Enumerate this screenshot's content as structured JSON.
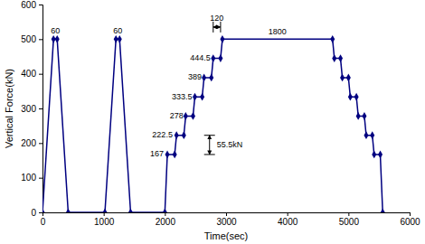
{
  "chart_data": {
    "type": "line",
    "x_label": "Time(sec)",
    "y_label": "Vertical Force(kN)",
    "x": [
      0,
      180,
      240,
      420,
      1020,
      1200,
      1260,
      1440,
      2000,
      2040,
      2160,
      2190,
      2310,
      2340,
      2460,
      2490,
      2610,
      2640,
      2760,
      2790,
      2910,
      2940,
      4740,
      4770,
      4870,
      4900,
      5000,
      5030,
      5130,
      5160,
      5260,
      5290,
      5390,
      5420,
      5520,
      5560
    ],
    "values": [
      0,
      500,
      500,
      0,
      0,
      500,
      500,
      0,
      0,
      167,
      167,
      222.5,
      222.5,
      278,
      278,
      333.5,
      333.5,
      389,
      389,
      444.5,
      444.5,
      500,
      500,
      444.5,
      444.5,
      389,
      389,
      333.5,
      333.5,
      278,
      278,
      222.5,
      222.5,
      167,
      167,
      0
    ],
    "color": "#000080",
    "marker": "diamond",
    "xlim": [
      0,
      6000
    ],
    "xticks": [
      0,
      1000,
      2000,
      3000,
      4000,
      5000,
      6000
    ],
    "ylim": [
      0,
      600
    ],
    "yticks": [
      0,
      100,
      200,
      300,
      400,
      500,
      600
    ],
    "grid": false,
    "annotations": [
      {
        "text": "60",
        "x": 210,
        "y": 522
      },
      {
        "text": "60",
        "x": 1230,
        "y": 522
      },
      {
        "text": "167",
        "x": 1870,
        "y": 167
      },
      {
        "text": "222.5",
        "x": 1960,
        "y": 222.5
      },
      {
        "text": "278",
        "x": 2190,
        "y": 278
      },
      {
        "text": "333.5",
        "x": 2280,
        "y": 333.5
      },
      {
        "text": "389",
        "x": 2490,
        "y": 389
      },
      {
        "text": "444.5",
        "x": 2580,
        "y": 444.5
      },
      {
        "text": "120",
        "x": 2850,
        "y": 560,
        "arrow": [
          2790,
          535,
          2910,
          535
        ]
      },
      {
        "text": "1800",
        "x": 3840,
        "y": 520
      },
      {
        "text": "55.5kN",
        "x": 3060,
        "y": 195,
        "arrow": [
          2730,
          167,
          2730,
          222.5
        ]
      }
    ]
  }
}
